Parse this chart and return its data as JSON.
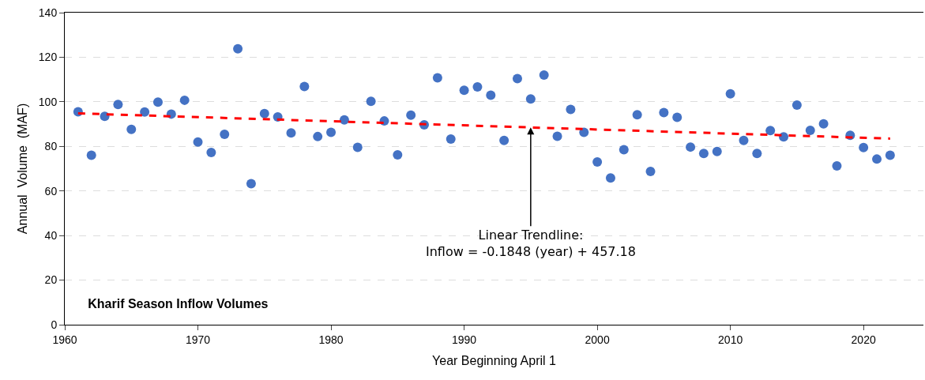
{
  "chart_data": {
    "type": "scatter",
    "title": "Kharif Season Inflow Volumes",
    "xlabel": "Year Beginning April 1",
    "ylabel": "Annual  Volume  (MAF)",
    "x": [
      1961,
      1962,
      1963,
      1964,
      1965,
      1966,
      1967,
      1968,
      1969,
      1970,
      1971,
      1972,
      1973,
      1974,
      1975,
      1976,
      1977,
      1978,
      1979,
      1980,
      1981,
      1982,
      1983,
      1984,
      1985,
      1986,
      1987,
      1988,
      1989,
      1990,
      1991,
      1992,
      1993,
      1994,
      1995,
      1996,
      1997,
      1998,
      1999,
      2000,
      2001,
      2002,
      2003,
      2004,
      2005,
      2006,
      2007,
      2008,
      2009,
      2010,
      2011,
      2012,
      2013,
      2014,
      2015,
      2016,
      2017,
      2018,
      2019,
      2020,
      2021,
      2022
    ],
    "series": [
      {
        "color": "#4472c4",
        "marker": "circle",
        "values": [
          95.5,
          76,
          93.5,
          98.8,
          87.6,
          95.4,
          99.9,
          94.5,
          100.7,
          82,
          77.3,
          85.4,
          123.8,
          63.3,
          94.7,
          93.2,
          86,
          106.9,
          84.4,
          86.3,
          91.9,
          79.6,
          100.2,
          91.4,
          76.2,
          94,
          89.7,
          110.8,
          83.3,
          105.2,
          106.7,
          103,
          82.7,
          110.4,
          101.3,
          112,
          84.5,
          96.6,
          86.3,
          73,
          65.8,
          78.5,
          94.2,
          68.8,
          95.2,
          93,
          79.7,
          76.8,
          77.7,
          103.6,
          82.7,
          76.8,
          87.1,
          84.3,
          98.5,
          87.2,
          90.1,
          71.2,
          85,
          79.5,
          74.3,
          76
        ]
      },
      {
        "type": "line",
        "color": "#ff0000",
        "line_style": "dashed",
        "marker": "none",
        "x": [
          1961,
          2022
        ],
        "values": [
          94.8,
          83.5
        ]
      }
    ],
    "annotations": [
      {
        "text": "Linear Trendline:\nInflow = -0.1848 (year) + 457.18",
        "x": 1995,
        "y": 88.5
      }
    ],
    "xlim": [
      1960,
      2024.5
    ],
    "xticks": [
      1960,
      1970,
      1980,
      1990,
      2000,
      2010,
      2020
    ],
    "ylim": [
      0,
      140
    ],
    "yticks": [
      0,
      20,
      40,
      60,
      80,
      100,
      120,
      140
    ],
    "grid": "y"
  }
}
